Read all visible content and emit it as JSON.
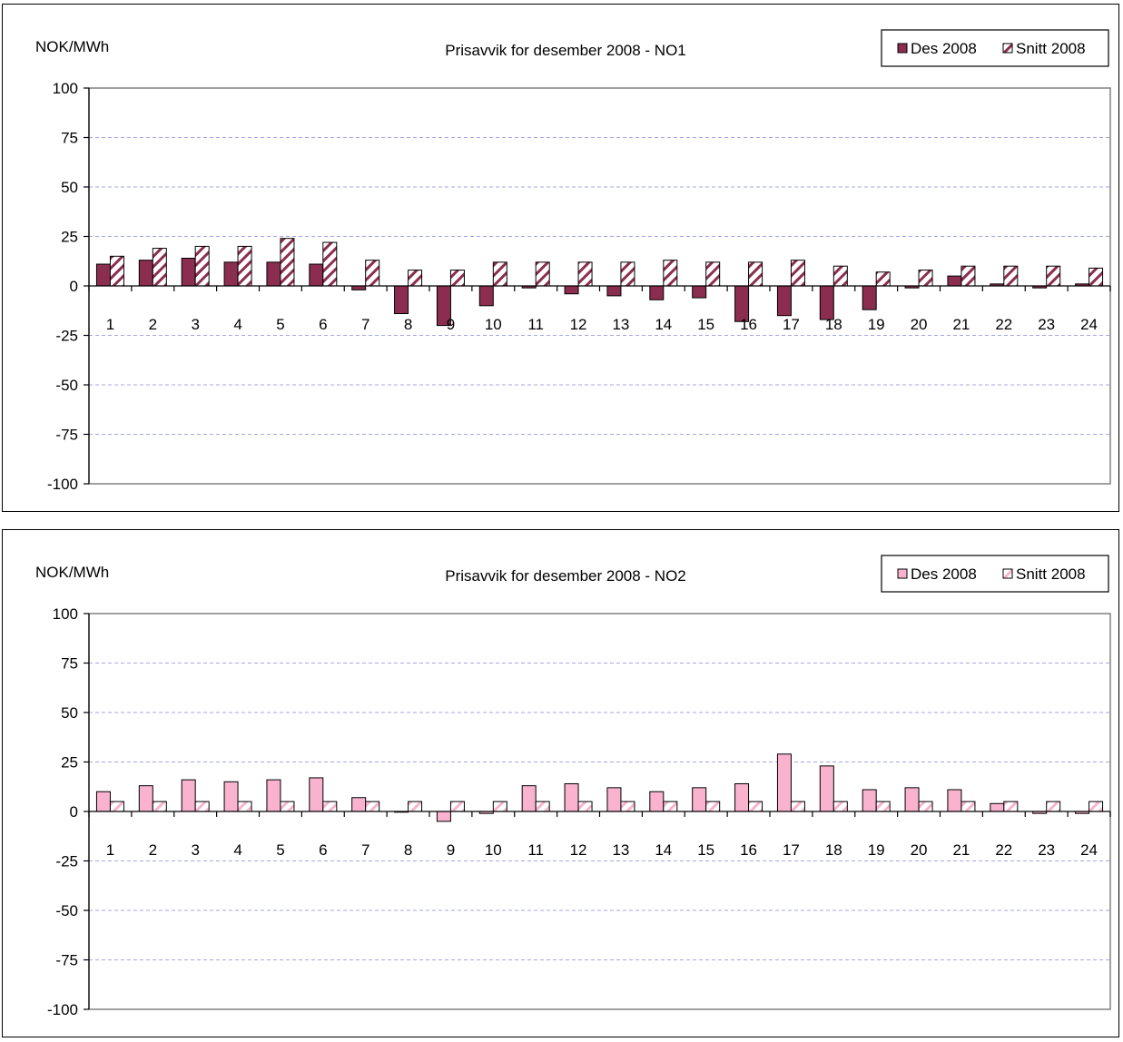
{
  "chart_data": [
    {
      "type": "bar",
      "title": "Prisavvik for  desember 2008 - NO1",
      "ylabel": "NOK/MWh",
      "xlabel": "",
      "ylim": [
        -100,
        100
      ],
      "yticks": [
        100,
        75,
        50,
        25,
        0,
        -25,
        -50,
        -75,
        -100
      ],
      "grid": true,
      "legend_position": "top-right",
      "categories": [
        "1",
        "2",
        "3",
        "4",
        "5",
        "6",
        "7",
        "8",
        "9",
        "10",
        "11",
        "12",
        "13",
        "14",
        "15",
        "16",
        "17",
        "18",
        "19",
        "20",
        "21",
        "22",
        "23",
        "24"
      ],
      "series": [
        {
          "name": "Des 2008",
          "color": "#8b2d4f",
          "pattern": "solid",
          "values": [
            11,
            13,
            14,
            12,
            12,
            11,
            -2,
            -14,
            -20,
            -10,
            -1,
            -4,
            -5,
            -7,
            -6,
            -18,
            -15,
            -17,
            -12,
            -1,
            5,
            1,
            -1,
            1
          ]
        },
        {
          "name": "Snitt 2008",
          "color": "#8b2d4f",
          "pattern": "hatched",
          "values": [
            15,
            19,
            20,
            20,
            24,
            22,
            13,
            8,
            8,
            12,
            12,
            12,
            12,
            13,
            12,
            12,
            13,
            10,
            7,
            8,
            10,
            10,
            10,
            9
          ]
        }
      ]
    },
    {
      "type": "bar",
      "title": "Prisavvik for desember 2008 - NO2",
      "ylabel": "NOK/MWh",
      "xlabel": "",
      "ylim": [
        -100,
        100
      ],
      "yticks": [
        100,
        75,
        50,
        25,
        0,
        -25,
        -50,
        -75,
        -100
      ],
      "grid": true,
      "legend_position": "top-right",
      "categories": [
        "1",
        "2",
        "3",
        "4",
        "5",
        "6",
        "7",
        "8",
        "9",
        "10",
        "11",
        "12",
        "13",
        "14",
        "15",
        "16",
        "17",
        "18",
        "19",
        "20",
        "21",
        "22",
        "23",
        "24"
      ],
      "series": [
        {
          "name": "Des 2008",
          "color": "#f9b3cf",
          "pattern": "solid",
          "values": [
            10,
            13,
            16,
            15,
            16,
            17,
            7,
            0,
            -5,
            -1,
            13,
            14,
            12,
            10,
            12,
            14,
            29,
            23,
            11,
            12,
            11,
            4,
            -1,
            -1
          ]
        },
        {
          "name": "Snitt 2008",
          "color": "#f9b3cf",
          "pattern": "hatched",
          "values": [
            5,
            5,
            5,
            5,
            5,
            5,
            5,
            5,
            5,
            5,
            5,
            5,
            5,
            5,
            5,
            5,
            5,
            5,
            5,
            5,
            5,
            5,
            5,
            5
          ]
        }
      ]
    }
  ]
}
